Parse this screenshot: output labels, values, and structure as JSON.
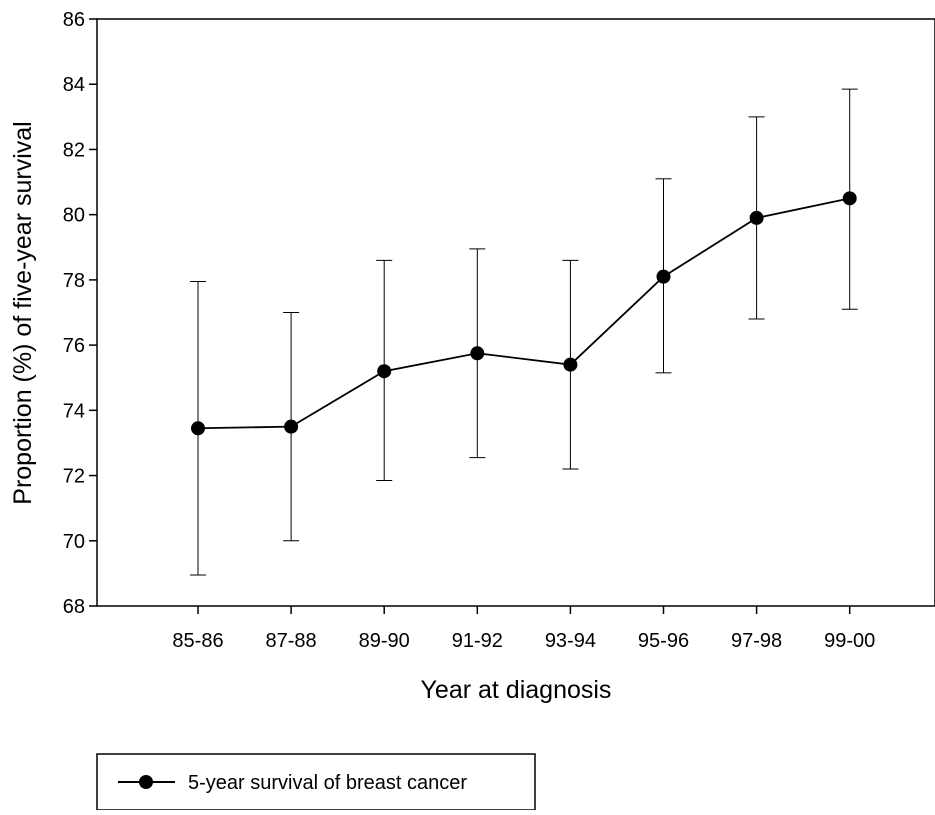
{
  "chart_data": {
    "type": "line",
    "title": "",
    "xlabel": "Year at diagnosis",
    "ylabel": "Proportion (%) of five-year survival",
    "categories": [
      "85-86",
      "87-88",
      "89-90",
      "91-92",
      "93-94",
      "95-96",
      "97-98",
      "99-00"
    ],
    "ylim": [
      68,
      86
    ],
    "yticks": [
      68,
      70,
      72,
      74,
      76,
      78,
      80,
      82,
      84,
      86
    ],
    "grid": false,
    "legend": {
      "placement": "bottom-left"
    },
    "series": [
      {
        "name": "5-year survival of breast cancer",
        "marker": "filled-circle",
        "color": "#000000",
        "values": [
          73.45,
          73.5,
          75.2,
          75.75,
          75.4,
          78.1,
          79.9,
          80.5
        ],
        "error_lower": [
          68.95,
          70.0,
          71.85,
          72.55,
          72.2,
          75.15,
          76.8,
          77.1
        ],
        "error_upper": [
          77.95,
          77.0,
          78.6,
          78.95,
          78.6,
          81.1,
          83.0,
          83.85
        ]
      }
    ]
  }
}
